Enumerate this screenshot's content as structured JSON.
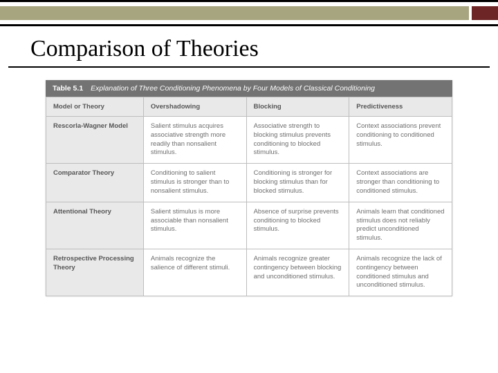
{
  "colors": {
    "band_main": "#a7a57f",
    "band_accent": "#6e2525",
    "band_border": "#000000",
    "caption_bg": "#737373",
    "caption_text": "#ffffff",
    "header_cell_bg": "#e9e9e9",
    "header_cell_text": "#555555",
    "cell_text": "#6d6d6d",
    "cell_border": "#bdbdbd",
    "page_bg": "#ffffff"
  },
  "typography": {
    "title_font": "Georgia, Times New Roman, serif",
    "title_size_pt": 26,
    "table_font": "Verdana, Geneva, sans-serif",
    "table_size_pt": 7
  },
  "title": "Comparison of Theories",
  "table": {
    "type": "table",
    "caption_label": "Table 5.1",
    "caption_text": "Explanation of Three Conditioning Phenomena by Four Models of Classical Conditioning",
    "columns": [
      "Model or Theory",
      "Overshadowing",
      "Blocking",
      "Predictiveness"
    ],
    "column_widths_pct": [
      24,
      25.33,
      25.33,
      25.33
    ],
    "rows": [
      {
        "head": "Rescorla-Wagner Model",
        "cells": [
          "Salient stimulus acquires associative strength more readily than nonsalient stimulus.",
          "Associative strength to blocking stimulus prevents conditioning to blocked stimulus.",
          "Context associations prevent conditioning to conditioned stimulus."
        ]
      },
      {
        "head": "Comparator Theory",
        "cells": [
          "Conditioning to salient stimulus is stronger than to nonsalient stimulus.",
          "Conditioning is stronger for blocking stimulus than for blocked stimulus.",
          "Context associations are stronger than conditioning to conditioned stimulus."
        ]
      },
      {
        "head": "Attentional Theory",
        "cells": [
          "Salient stimulus is more associable than nonsalient stimulus.",
          "Absence of surprise prevents conditioning to blocked stimulus.",
          "Animals learn that conditioned stimulus does not reliably predict unconditioned stimulus."
        ]
      },
      {
        "head": "Retrospective Processing Theory",
        "cells": [
          "Animals recognize the salience of different stimuli.",
          "Animals recognize greater contingency between blocking and unconditioned stimulus.",
          "Animals recognize the lack of contingency between conditioned stimulus and unconditioned stimulus."
        ]
      }
    ]
  }
}
